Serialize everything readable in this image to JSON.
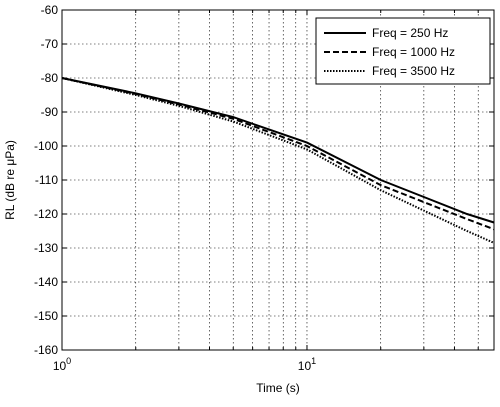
{
  "chart_data": {
    "type": "line",
    "x_label": "Time (s)",
    "y_label": "RL (dB re μPa)",
    "x": [
      1,
      2,
      3,
      5,
      10,
      20,
      30,
      45,
      58
    ],
    "series": [
      {
        "name": "Freq = 250 Hz",
        "color": "#000000",
        "dash": "solid",
        "values": [
          -80,
          -84.5,
          -87.5,
          -91.5,
          -99,
          -110,
          -115,
          -120,
          -122.5
        ]
      },
      {
        "name": "Freq = 1000 Hz",
        "color": "#000000",
        "dash": "dashed",
        "values": [
          -80,
          -84.7,
          -87.8,
          -92,
          -100,
          -111.5,
          -116.5,
          -121.5,
          -124.5
        ]
      },
      {
        "name": "Freq = 3500 Hz",
        "color": "#000000",
        "dash": "dotted",
        "values": [
          -80,
          -85,
          -88.2,
          -92.8,
          -101,
          -113,
          -119,
          -125,
          -128.5
        ]
      }
    ],
    "x_log": true,
    "xlim": [
      1,
      58
    ],
    "xticks": [
      {
        "value": 1,
        "label": "10^0"
      },
      {
        "value": 10,
        "label": "10^1"
      }
    ],
    "xminor": [
      2,
      3,
      4,
      5,
      6,
      7,
      8,
      9,
      20,
      30,
      40,
      50
    ],
    "ylim": [
      -160,
      -60
    ],
    "yticks": [
      -160,
      -150,
      -140,
      -130,
      -120,
      -110,
      -100,
      -90,
      -80,
      -70,
      -60
    ],
    "grid": true,
    "legend": "upper right"
  }
}
